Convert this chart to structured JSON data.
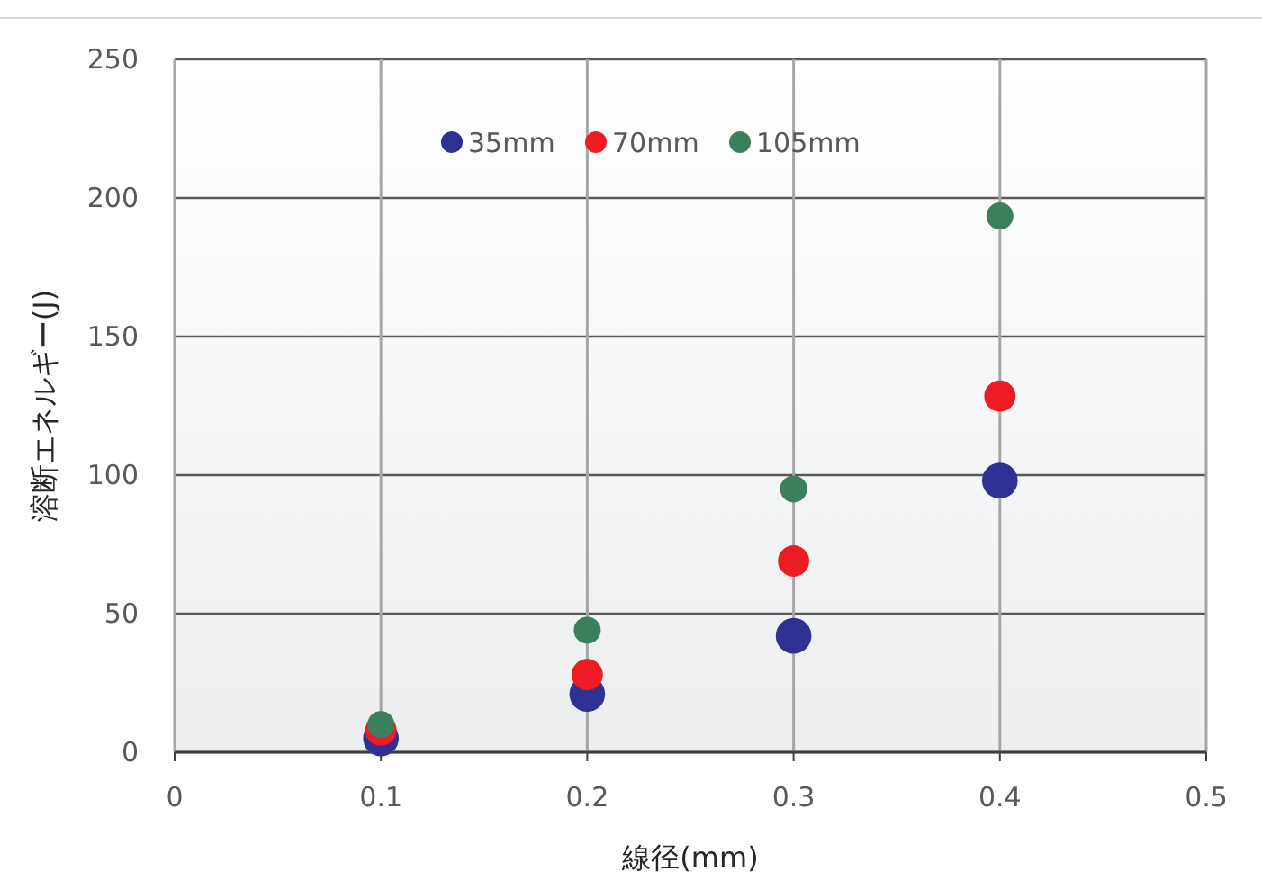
{
  "chart_data": {
    "type": "scatter",
    "xlabel": "線径(mm)",
    "ylabel": "溶断エネルギー(J)",
    "x": [
      0.1,
      0.2,
      0.3,
      0.4
    ],
    "series": [
      {
        "name": "35mm",
        "color": "#2e3192",
        "values": [
          5,
          21,
          42,
          98
        ]
      },
      {
        "name": "70mm",
        "color": "#ed1c24",
        "values": [
          8,
          28,
          69,
          128.5
        ]
      },
      {
        "name": "105mm",
        "color": "#3c7f5c",
        "values": [
          10,
          44,
          95,
          193.5
        ]
      }
    ],
    "xlim": [
      0,
      0.5
    ],
    "xticks": [
      0,
      0.1,
      0.2,
      0.3,
      0.4,
      0.5
    ],
    "ylim": [
      0,
      250
    ],
    "yticks": [
      0,
      50,
      100,
      150,
      200,
      250
    ],
    "grid": true,
    "legend": "top",
    "marker": "circle"
  }
}
